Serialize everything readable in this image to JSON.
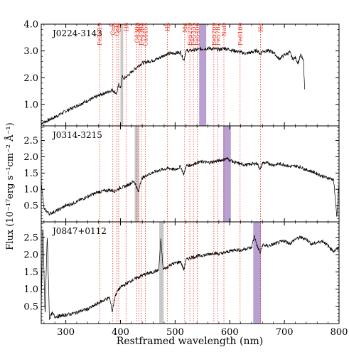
{
  "chart_data": {
    "type": "line",
    "xlabel": "Restframed wavelength (nm)",
    "ylabel": "Flux (10⁻¹⁷erg s⁻¹cm⁻² Å⁻¹)",
    "xlim": [
      255,
      800
    ],
    "xticks": [
      300,
      400,
      500,
      600,
      700,
      800
    ],
    "grid": false,
    "line_color": "#000000",
    "marker_color": "#ee3322",
    "gray_band_color": "#c8c8c8",
    "purple_band_color": "#b9a0d2",
    "lines": [
      {
        "label": "Fe3619",
        "x": 361.9
      },
      {
        "label": "CaK",
        "x": 386.0
      },
      {
        "label": "CaH",
        "x": 393.4
      },
      {
        "label": "CN",
        "x": 396.8
      },
      {
        "label": "G4300",
        "x": 430.0
      },
      {
        "label": "Hδ",
        "x": 410.2
      },
      {
        "label": "Hγ",
        "x": 434.0
      },
      {
        "label": "Fe4383",
        "x": 438.3
      },
      {
        "label": "Ca4455",
        "x": 445.5
      },
      {
        "label": "Hβ",
        "x": 486.1
      },
      {
        "label": "Mg",
        "x": 517.5
      },
      {
        "label": "Fe5270",
        "x": 527.0
      },
      {
        "label": "Fe5335",
        "x": 533.5
      },
      {
        "label": "Fe5406",
        "x": 540.6
      },
      {
        "label": "Fe5709",
        "x": 570.9
      },
      {
        "label": "Fe5782",
        "x": 578.2
      },
      {
        "label": "NaD",
        "x": 589.3
      },
      {
        "label": "Fe6189",
        "x": 618.9
      },
      {
        "label": "Hα",
        "x": 656.3
      }
    ],
    "panels": [
      {
        "name": "J0224-3143",
        "ylim": [
          0.2,
          4.0
        ],
        "yticks": [
          1.0,
          2.0,
          3.0,
          4.0
        ],
        "ytick_labels": [
          "1.0",
          "2.0",
          "3.0",
          "4.0"
        ],
        "gray_bands": [
          [
            400,
            405
          ]
        ],
        "purple_bands": [
          [
            544,
            557
          ]
        ],
        "x_range": [
          255,
          737
        ],
        "series": {
          "x": [
            255,
            265,
            275,
            285,
            295,
            305,
            315,
            325,
            335,
            345,
            355,
            365,
            375,
            385,
            393,
            397,
            401,
            403,
            405,
            412,
            420,
            430,
            440,
            450,
            460,
            470,
            480,
            490,
            500,
            510,
            516,
            520,
            530,
            540,
            550,
            560,
            570,
            580,
            590,
            600,
            610,
            620,
            630,
            640,
            650,
            656,
            660,
            670,
            680,
            690,
            700,
            710,
            715,
            720,
            725,
            730,
            735,
            737
          ],
          "y": [
            0.3,
            0.38,
            0.48,
            0.58,
            0.7,
            0.8,
            0.9,
            1.0,
            1.1,
            1.18,
            1.28,
            1.38,
            1.45,
            1.55,
            1.4,
            1.75,
            1.6,
            2.1,
            1.95,
            2.05,
            2.2,
            2.4,
            2.55,
            2.6,
            2.65,
            2.72,
            2.85,
            2.9,
            2.92,
            2.95,
            2.65,
            3.0,
            3.02,
            3.05,
            3.08,
            3.1,
            3.08,
            3.05,
            3.1,
            3.05,
            3.0,
            2.95,
            2.9,
            2.95,
            3.02,
            2.88,
            3.0,
            3.0,
            2.95,
            2.7,
            2.85,
            2.95,
            2.7,
            2.75,
            2.55,
            2.85,
            2.6,
            1.6
          ]
        }
      },
      {
        "name": "J0314-3215",
        "ylim": [
          0.0,
          2.95
        ],
        "yticks": [
          0.5,
          1.0,
          1.5,
          2.0,
          2.5
        ],
        "ytick_labels": [
          "0.5",
          "1.0",
          "1.5",
          "2.0",
          "2.5"
        ],
        "gray_bands": [
          [
            426,
            434
          ]
        ],
        "purple_bands": [
          [
            588,
            602
          ]
        ],
        "x_range": [
          255,
          800
        ],
        "series": {
          "x": [
            255,
            260,
            270,
            280,
            290,
            300,
            310,
            320,
            330,
            340,
            350,
            360,
            370,
            380,
            390,
            400,
            410,
            420,
            425,
            430,
            433,
            436,
            440,
            450,
            460,
            470,
            480,
            490,
            500,
            510,
            516,
            520,
            530,
            540,
            550,
            560,
            570,
            580,
            590,
            595,
            600,
            610,
            620,
            630,
            640,
            650,
            656,
            660,
            670,
            680,
            690,
            700,
            710,
            720,
            730,
            740,
            750,
            760,
            770,
            780,
            790,
            796,
            800
          ],
          "y": [
            1.25,
            0.4,
            0.25,
            0.32,
            0.4,
            0.5,
            0.55,
            0.62,
            0.7,
            0.78,
            0.85,
            0.92,
            0.95,
            0.98,
            0.95,
            1.05,
            1.1,
            1.2,
            1.25,
            1.05,
            0.9,
            1.2,
            1.35,
            1.45,
            1.52,
            1.58,
            1.62,
            1.65,
            1.6,
            1.7,
            1.45,
            1.72,
            1.75,
            1.82,
            1.85,
            1.82,
            1.85,
            1.88,
            1.92,
            1.95,
            1.9,
            1.82,
            1.78,
            1.75,
            1.78,
            1.8,
            1.6,
            1.82,
            1.8,
            1.75,
            1.78,
            1.76,
            1.7,
            1.72,
            1.68,
            1.6,
            1.55,
            1.48,
            1.4,
            1.35,
            1.3,
            0.15,
            1.2
          ]
        }
      },
      {
        "name": "J0847+0112",
        "ylim": [
          0.0,
          2.95
        ],
        "yticks": [
          0.5,
          1.0,
          1.5,
          2.0,
          2.5
        ],
        "ytick_labels": [
          "0.5",
          "1.0",
          "1.5",
          "2.0",
          "2.5"
        ],
        "gray_bands": [
          [
            471,
            479
          ]
        ],
        "purple_bands": [
          [
            643,
            657
          ]
        ],
        "x_range": [
          255,
          800
        ],
        "series": {
          "x": [
            255,
            258,
            262,
            266,
            270,
            275,
            280,
            290,
            300,
            310,
            320,
            330,
            340,
            350,
            360,
            370,
            380,
            385,
            390,
            395,
            400,
            410,
            420,
            430,
            440,
            450,
            460,
            470,
            474,
            478,
            485,
            490,
            500,
            510,
            516,
            520,
            530,
            540,
            550,
            560,
            570,
            580,
            590,
            600,
            610,
            620,
            630,
            640,
            645,
            650,
            656,
            660,
            670,
            680,
            690,
            700,
            710,
            720,
            730,
            740,
            750,
            760,
            770,
            780,
            790,
            800
          ],
          "y": [
            0.5,
            2.9,
            0.2,
            2.6,
            0.15,
            0.3,
            0.2,
            0.22,
            0.25,
            0.28,
            0.32,
            0.38,
            0.42,
            0.5,
            0.6,
            0.68,
            0.75,
            0.35,
            0.8,
            0.95,
            1.05,
            1.15,
            1.25,
            1.32,
            1.4,
            1.45,
            1.5,
            1.55,
            2.45,
            1.58,
            1.62,
            1.7,
            1.75,
            1.8,
            1.55,
            1.85,
            1.92,
            1.95,
            1.98,
            2.0,
            2.05,
            2.02,
            2.05,
            2.1,
            2.15,
            2.12,
            2.18,
            2.2,
            2.55,
            2.25,
            2.05,
            2.28,
            2.25,
            2.3,
            2.35,
            2.4,
            2.32,
            2.45,
            2.5,
            2.45,
            2.3,
            2.35,
            2.4,
            2.25,
            2.1,
            2.2
          ]
        }
      }
    ]
  }
}
